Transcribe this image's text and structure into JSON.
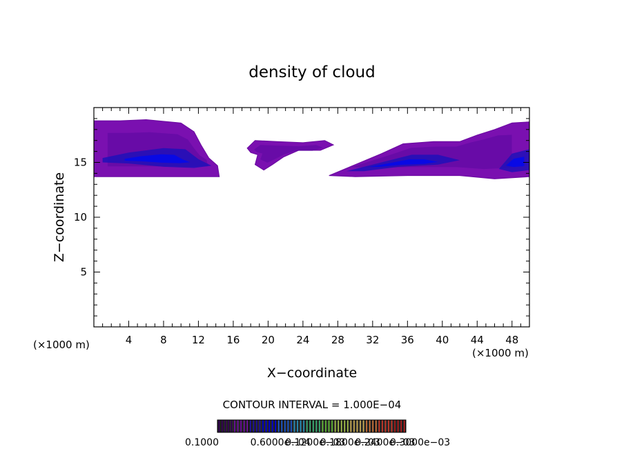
{
  "chart_data": {
    "type": "contour",
    "title": "density of cloud",
    "xlabel": "X−coordinate",
    "ylabel": "Z−coordinate",
    "x_unit_left": "(×1000 m)",
    "x_unit_right": "(×1000 m)",
    "xlim": [
      0,
      50
    ],
    "ylim": [
      0,
      20
    ],
    "x_ticks": [
      4,
      8,
      12,
      16,
      20,
      24,
      28,
      32,
      36,
      40,
      44,
      48
    ],
    "y_ticks": [
      5,
      10,
      15
    ],
    "contour_interval": "CONTOUR INTERVAL = 1.000E−04",
    "colorbar_labels": [
      "0.1000",
      "0.6000e−04",
      "0.1200e−03",
      "0.1800e−03",
      "0.2400e−03",
      "0.3000e−03"
    ],
    "colorbar_colors": [
      "#3a0060",
      "#7a10b0",
      "#2010b0",
      "#0000f0",
      "#2060e0",
      "#30a0d0",
      "#40c080",
      "#70d040",
      "#b0d050",
      "#e0c060",
      "#e08040",
      "#e04030",
      "#c02020"
    ],
    "regions": [
      {
        "name": "cloud-west",
        "outline": [
          [
            0,
            14
          ],
          [
            0,
            18.8
          ],
          [
            3,
            18.8
          ],
          [
            6,
            18.9
          ],
          [
            10,
            18.6
          ],
          [
            11.5,
            17.8
          ],
          [
            12.3,
            16.6
          ],
          [
            13.2,
            15.4
          ],
          [
            14.2,
            14.7
          ],
          [
            14.4,
            13.7
          ],
          [
            12,
            13.7
          ],
          [
            6,
            13.7
          ],
          [
            0,
            13.7
          ]
        ],
        "core": [
          [
            1,
            15.4
          ],
          [
            4,
            15.9
          ],
          [
            8,
            16.3
          ],
          [
            10.5,
            16.2
          ],
          [
            12,
            15.3
          ],
          [
            13.5,
            14.7
          ],
          [
            11.5,
            14.5
          ],
          [
            8,
            14.6
          ],
          [
            4,
            14.9
          ],
          [
            1,
            15.0
          ]
        ]
      },
      {
        "name": "cloud-center-top",
        "outline": [
          [
            17.6,
            16.3
          ],
          [
            18.5,
            17.0
          ],
          [
            21,
            16.9
          ],
          [
            24,
            16.8
          ],
          [
            26.5,
            17.0
          ],
          [
            27.5,
            16.6
          ],
          [
            26,
            16.1
          ],
          [
            23.5,
            16.1
          ],
          [
            21.8,
            15.5
          ],
          [
            20.5,
            14.8
          ],
          [
            19.5,
            14.3
          ],
          [
            18.5,
            14.8
          ],
          [
            18.8,
            15.7
          ],
          [
            18.0,
            15.9
          ]
        ],
        "core": []
      },
      {
        "name": "cloud-east",
        "outline": [
          [
            27,
            13.8
          ],
          [
            30,
            14.8
          ],
          [
            33,
            15.8
          ],
          [
            35.5,
            16.7
          ],
          [
            39,
            16.9
          ],
          [
            42,
            16.9
          ],
          [
            44,
            17.5
          ],
          [
            46,
            18.0
          ],
          [
            48,
            18.6
          ],
          [
            50,
            18.7
          ],
          [
            50,
            13.7
          ],
          [
            46,
            13.5
          ],
          [
            42,
            13.8
          ],
          [
            36,
            13.8
          ],
          [
            30,
            13.7
          ]
        ],
        "core": [
          [
            29,
            14.2
          ],
          [
            33,
            15.0
          ],
          [
            36.5,
            15.7
          ],
          [
            39.5,
            15.7
          ],
          [
            42,
            15.2
          ],
          [
            39.5,
            14.8
          ],
          [
            35,
            14.6
          ],
          [
            31,
            14.2
          ]
        ]
      },
      {
        "name": "cloud-east-core2",
        "outline": [],
        "core": [
          [
            46.5,
            14.4
          ],
          [
            48,
            15.8
          ],
          [
            50,
            16.2
          ],
          [
            50,
            14.3
          ],
          [
            48,
            14.1
          ]
        ]
      }
    ]
  }
}
